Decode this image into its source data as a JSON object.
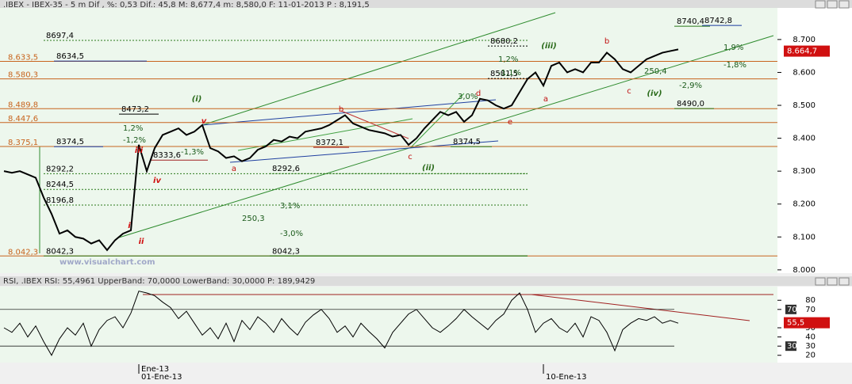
{
  "chart_data": [
    {
      "type": "line",
      "title": ".IBEX - IBEX-35 - 5 m Dif , %: 0,53 Dif.: 45,8 M: 8,677,4 m: 8,580,0 F: 11-01-2013 P : 8,191,5",
      "watermark": "www.visualchart.com",
      "period_label": "Ene-13",
      "categories": [
        null,
        null,
        null,
        null,
        null,
        null,
        null,
        null,
        null,
        null,
        null,
        null,
        null,
        null,
        null,
        null,
        null,
        "01-Ene-13",
        null,
        null,
        null,
        null,
        null,
        null,
        null,
        null,
        null,
        null,
        null,
        null,
        null,
        null,
        null,
        null,
        null,
        null,
        null,
        null,
        null,
        null,
        null,
        null,
        null,
        null,
        null,
        null,
        null,
        null,
        null,
        null,
        null,
        null,
        null,
        null,
        null,
        null,
        null,
        null,
        null,
        null,
        null,
        null,
        null,
        null,
        null,
        null,
        null,
        null,
        "10-Ene-13",
        null,
        null,
        null,
        null,
        null,
        null,
        null,
        null,
        null,
        null,
        null,
        null,
        null,
        null,
        null,
        null,
        null
      ],
      "series": [
        {
          "name": "IBEX-35",
          "color": "#000000",
          "values": [
            8300,
            8295,
            8300,
            8290,
            8280,
            8220,
            8170,
            8110,
            8120,
            8100,
            8095,
            8080,
            8090,
            8060,
            8090,
            8110,
            8120,
            8380,
            8300,
            8370,
            8410,
            8420,
            8430,
            8410,
            8420,
            8440,
            8370,
            8360,
            8340,
            8345,
            8330,
            8340,
            8365,
            8375,
            8395,
            8390,
            8405,
            8400,
            8420,
            8425,
            8430,
            8440,
            8455,
            8470,
            8445,
            8435,
            8425,
            8420,
            8415,
            8405,
            8410,
            8380,
            8400,
            8430,
            8455,
            8480,
            8470,
            8480,
            8450,
            8470,
            8520,
            8515,
            8500,
            8490,
            8500,
            8540,
            8580,
            8600,
            8560,
            8620,
            8630,
            8600,
            8610,
            8600,
            8630,
            8630,
            8660,
            8640,
            8610,
            8600,
            8620,
            8640,
            8650,
            8660,
            8665,
            8670
          ]
        }
      ],
      "ylim": [
        7990,
        8796
      ],
      "yticks": [
        {
          "value": 8000,
          "label": "8.000"
        },
        {
          "value": 8100,
          "label": "8.100"
        },
        {
          "value": 8200,
          "label": "8.200"
        },
        {
          "value": 8300,
          "label": "8.300"
        },
        {
          "value": 8400,
          "label": "8.400"
        },
        {
          "value": 8500,
          "label": "8.500"
        },
        {
          "value": 8600,
          "label": "8.600"
        },
        {
          "value": 8700,
          "label": "8.700"
        }
      ],
      "last_value": {
        "value": 8664.7,
        "label": "8.664,7"
      },
      "levels": [
        {
          "value": 8633.5,
          "label": "8.633,5"
        },
        {
          "value": 8580.3,
          "label": "8.580,3"
        },
        {
          "value": 8489.8,
          "label": "8.489,8"
        },
        {
          "value": 8447.6,
          "label": "8.447,6"
        },
        {
          "value": 8375.1,
          "label": "8.375,1"
        },
        {
          "value": 8042.3,
          "label": "8.042,3"
        }
      ],
      "price_tags": [
        {
          "value": 8697.4,
          "label": "8697,4"
        },
        {
          "value": 8634.5,
          "label": "8634,5"
        },
        {
          "value": 8680.2,
          "label": "8680,2"
        },
        {
          "value": 8581.5,
          "label": "8581,5"
        },
        {
          "value": 8740.4,
          "label": "8740,4"
        },
        {
          "value": 8742.8,
          "label": "8742,8"
        },
        {
          "value": 8490.0,
          "label": "8490,0"
        },
        {
          "value": 8374.5,
          "label": "8374,5"
        },
        {
          "value": 8292.6,
          "label": "8292,6"
        },
        {
          "value": 8292.2,
          "label": "8292,2"
        },
        {
          "value": 8244.5,
          "label": "8244,5"
        },
        {
          "value": 8196.8,
          "label": "8196,8"
        },
        {
          "value": 8042.3,
          "label": "8042,3"
        },
        {
          "value": 8042.3,
          "label": "8042,3"
        },
        {
          "value": 8473.2,
          "label": "8473,2"
        },
        {
          "value": 8333.6,
          "label": "8333,6"
        },
        {
          "value": 8372.1,
          "label": "8372,1"
        },
        {
          "value": 8374.5,
          "label": "8374,5"
        }
      ],
      "notes": [
        "250,3",
        "3,1%",
        "-3,0%",
        "1,2%",
        "-1,1%",
        "-2,9%",
        "1,9%",
        "-1,8%",
        "250,4",
        "1,2%",
        "-1,2%",
        "-1,3%",
        "3,0%"
      ],
      "wave_labels": [
        "(i)",
        "(ii)",
        "(iii)",
        "(iv)",
        "i",
        "ii",
        "iii",
        "iv",
        "v",
        "a",
        "b",
        "c",
        "d",
        "e",
        "a",
        "b",
        "c"
      ],
      "grid": false
    },
    {
      "type": "line",
      "title": "RSI, .IBEX RSI: 55,4961 UpperBand: 70,0000 LowerBand: 30,0000 P: 189,9429",
      "series": [
        {
          "name": "RSI",
          "color": "#000000",
          "values": [
            50,
            45,
            55,
            40,
            52,
            35,
            20,
            38,
            50,
            42,
            55,
            30,
            48,
            58,
            62,
            50,
            66,
            90,
            88,
            85,
            78,
            72,
            60,
            68,
            55,
            42,
            50,
            38,
            55,
            35,
            58,
            48,
            62,
            55,
            45,
            60,
            50,
            42,
            56,
            64,
            70,
            60,
            45,
            52,
            40,
            55,
            46,
            38,
            28,
            45,
            55,
            65,
            70,
            60,
            50,
            45,
            52,
            60,
            70,
            62,
            55,
            48,
            58,
            65,
            80,
            88,
            70,
            45,
            55,
            60,
            50,
            45,
            55,
            40,
            62,
            58,
            45,
            25,
            48,
            55,
            60,
            58,
            62,
            55,
            58,
            55
          ]
        }
      ],
      "ylim": [
        14.6,
        92.3
      ],
      "yticks": [
        20,
        30,
        40,
        50,
        70,
        80
      ],
      "bands": [
        70,
        30
      ],
      "last_value": {
        "value": 55.5,
        "label": "55,5"
      }
    }
  ]
}
